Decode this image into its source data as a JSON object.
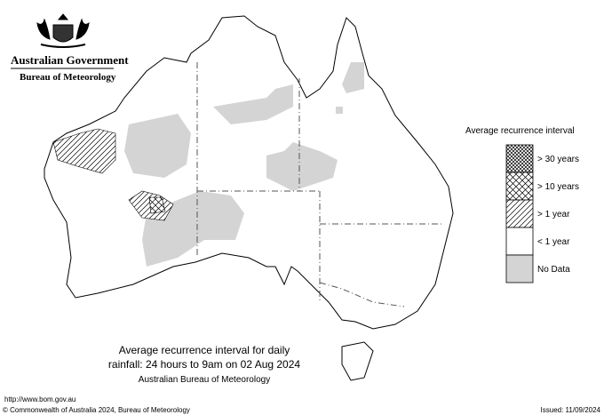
{
  "header": {
    "government": "Australian Government",
    "agency": "Bureau of Meteorology"
  },
  "legend": {
    "title": "Average recurrence interval",
    "items": [
      "> 30 years",
      "> 10 years",
      "> 1 year",
      "< 1 year",
      "No Data"
    ]
  },
  "caption": {
    "lines": [
      "Average recurrence interval for daily",
      "rainfall: 24 hours to 9am on 02 Aug 2024",
      "Australian Bureau of Meteorology"
    ]
  },
  "footer": {
    "url": "http://www.bom.gov.au",
    "copyright": "© Commonwealth of Australia 2024, Bureau of Meteorology",
    "issued": "Issued: 11/09/2024"
  }
}
